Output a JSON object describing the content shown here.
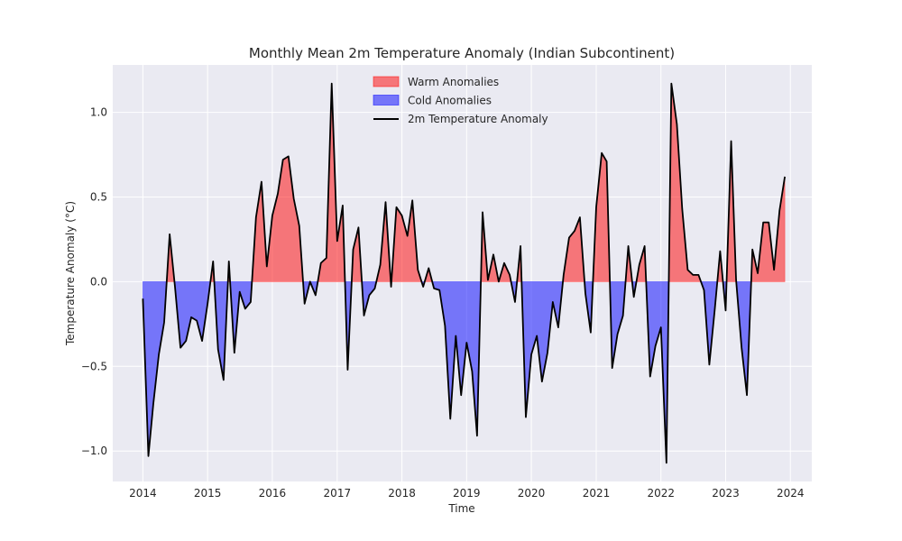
{
  "chart_data": {
    "type": "line",
    "title": "Monthly Mean 2m Temperature Anomaly (Indian Subcontinent)",
    "xlabel": "Time",
    "ylabel": "Temperature Anomaly (°C)",
    "xlim": [
      "2013-07-15",
      "2024-05-01"
    ],
    "ylim": [
      -1.18,
      1.28
    ],
    "x_ticks": [
      "2014",
      "2015",
      "2016",
      "2017",
      "2018",
      "2019",
      "2020",
      "2021",
      "2022",
      "2023",
      "2024"
    ],
    "y_ticks": [
      1.0,
      0.5,
      0.0,
      -0.5,
      -1.0
    ],
    "y_tick_labels": [
      "1.0",
      "0.5",
      "0.0",
      "−0.5",
      "−1.0"
    ],
    "grid": true,
    "legend_position": "top-center",
    "colors": {
      "background": "#eaeaf2",
      "grid": "#ffffff",
      "warm_fill": "#ff0000",
      "cold_fill": "#0000ff",
      "line": "#000000"
    },
    "legend": [
      {
        "label": "Warm Anomalies",
        "kind": "patch",
        "color": "#ff0000"
      },
      {
        "label": "Cold Anomalies",
        "kind": "patch",
        "color": "#0000ff"
      },
      {
        "label": "2m Temperature Anomaly",
        "kind": "line",
        "color": "#000000"
      }
    ],
    "series": [
      {
        "name": "2m Temperature Anomaly",
        "start": "2014-01",
        "frequency": "monthly",
        "values": [
          -0.1,
          -1.03,
          -0.72,
          -0.43,
          -0.24,
          0.28,
          -0.03,
          -0.39,
          -0.35,
          -0.21,
          -0.23,
          -0.35,
          -0.13,
          0.12,
          -0.4,
          -0.58,
          0.12,
          -0.42,
          -0.06,
          -0.16,
          -0.12,
          0.38,
          0.59,
          0.09,
          0.39,
          0.52,
          0.72,
          0.74,
          0.49,
          0.33,
          -0.13,
          0.0,
          -0.08,
          0.11,
          0.14,
          1.17,
          0.24,
          0.45,
          -0.52,
          0.19,
          0.32,
          -0.2,
          -0.08,
          -0.04,
          0.1,
          0.47,
          -0.03,
          0.44,
          0.39,
          0.27,
          0.48,
          0.07,
          -0.03,
          0.08,
          -0.04,
          -0.05,
          -0.26,
          -0.81,
          -0.32,
          -0.67,
          -0.36,
          -0.53,
          -0.91,
          0.41,
          0.01,
          0.16,
          0.0,
          0.11,
          0.04,
          -0.12,
          0.21,
          -0.8,
          -0.43,
          -0.32,
          -0.59,
          -0.42,
          -0.12,
          -0.27,
          0.04,
          0.26,
          0.3,
          0.38,
          -0.07,
          -0.3,
          0.44,
          0.76,
          0.71,
          -0.51,
          -0.31,
          -0.2,
          0.21,
          -0.09,
          0.1,
          0.21,
          -0.56,
          -0.38,
          -0.27,
          -1.07,
          1.17,
          0.93,
          0.43,
          0.07,
          0.04,
          0.04,
          -0.05,
          -0.49,
          -0.16,
          0.18,
          -0.17,
          0.83,
          0.01,
          -0.39,
          -0.67,
          0.19,
          0.05,
          0.35,
          0.35,
          0.07,
          0.42,
          0.62
        ]
      }
    ]
  }
}
